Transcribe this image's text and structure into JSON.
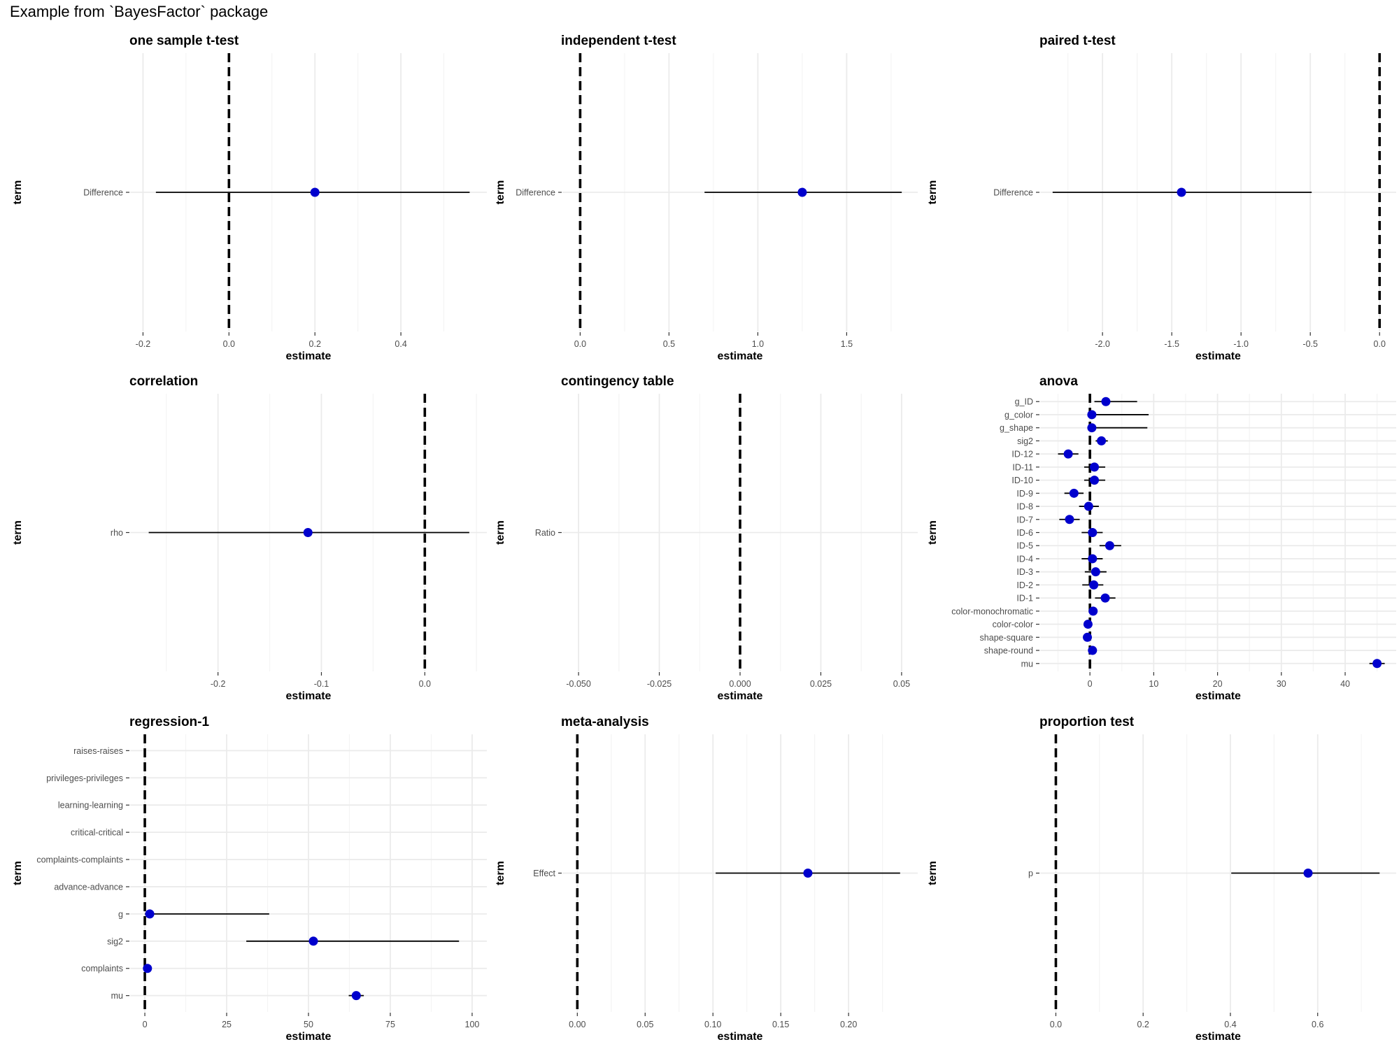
{
  "page": {
    "title": "Example from `BayesFactor` package"
  },
  "colors": {
    "point": "#0000CD",
    "grid_major": "#EBEBEB",
    "grid_minor": "#F4F4F4",
    "line": "#000000"
  },
  "chart_data": [
    {
      "type": "scatter",
      "title": "one sample t-test",
      "xlabel": "estimate",
      "ylabel": "term",
      "xlim": [
        -0.23,
        0.6
      ],
      "xticks": [
        -0.2,
        0.0,
        0.2,
        0.4
      ],
      "xtick_labels": [
        "-0.2",
        "0.0",
        "0.2",
        "0.4"
      ],
      "minor_xticks": [
        -0.1,
        0.1,
        0.3,
        0.5
      ],
      "ref_line": 0,
      "terms": [
        "Difference"
      ],
      "estimates": [
        0.2
      ],
      "conf_low": [
        -0.17
      ],
      "conf_high": [
        0.56
      ]
    },
    {
      "type": "scatter",
      "title": "independent t-test",
      "xlabel": "estimate",
      "ylabel": "term",
      "xlim": [
        -0.1,
        1.9
      ],
      "xticks": [
        0.0,
        0.5,
        1.0,
        1.5
      ],
      "xtick_labels": [
        "0.0",
        "0.5",
        "1.0",
        "1.5"
      ],
      "minor_xticks": [
        0.25,
        0.75,
        1.25,
        1.75
      ],
      "ref_line": 0,
      "terms": [
        "Difference"
      ],
      "estimates": [
        1.25
      ],
      "conf_low": [
        0.7
      ],
      "conf_high": [
        1.81
      ]
    },
    {
      "type": "scatter",
      "title": "paired t-test",
      "xlabel": "estimate",
      "ylabel": "term",
      "xlim": [
        -2.45,
        0.12
      ],
      "xticks": [
        -2.0,
        -1.5,
        -1.0,
        -0.5,
        0.0
      ],
      "xtick_labels": [
        "-2.0",
        "-1.5",
        "-1.0",
        "-0.5",
        "0.0"
      ],
      "minor_xticks": [
        -2.25,
        -1.75,
        -1.25,
        -0.75,
        -0.25
      ],
      "ref_line": 0,
      "terms": [
        "Difference"
      ],
      "estimates": [
        -1.43
      ],
      "conf_low": [
        -2.36
      ],
      "conf_high": [
        -0.49
      ]
    },
    {
      "type": "scatter",
      "title": "correlation",
      "xlabel": "estimate",
      "ylabel": "term",
      "xlim": [
        -0.285,
        0.06
      ],
      "xticks": [
        -0.2,
        -0.1,
        0.0
      ],
      "xtick_labels": [
        "-0.2",
        "-0.1",
        "0.0"
      ],
      "minor_xticks": [
        -0.25,
        -0.15,
        -0.05,
        0.05
      ],
      "ref_line": 0,
      "terms": [
        "rho"
      ],
      "estimates": [
        -0.113
      ],
      "conf_low": [
        -0.267
      ],
      "conf_high": [
        0.043
      ]
    },
    {
      "type": "scatter",
      "title": "contingency table",
      "xlabel": "estimate",
      "ylabel": "term",
      "xlim": [
        -0.055,
        0.055
      ],
      "xticks": [
        -0.05,
        -0.025,
        0.0,
        0.025,
        0.05
      ],
      "xtick_labels": [
        "-0.050",
        "-0.025",
        "0.000",
        "0.025",
        "0.05"
      ],
      "minor_xticks": [
        -0.0375,
        -0.0125,
        0.0125,
        0.0375
      ],
      "ref_line": 0,
      "terms": [
        "Ratio"
      ],
      "estimates": [
        null
      ],
      "conf_low": [
        null
      ],
      "conf_high": [
        null
      ]
    },
    {
      "type": "scatter",
      "title": "anova",
      "xlabel": "estimate",
      "ylabel": "term",
      "xlim": [
        -7.8,
        48.0
      ],
      "xticks": [
        0,
        10,
        20,
        30,
        40
      ],
      "xtick_labels": [
        "0",
        "10",
        "20",
        "30",
        "40"
      ],
      "minor_xticks": [
        -5,
        5,
        15,
        25,
        35,
        45
      ],
      "ref_line": 0,
      "terms": [
        "mu",
        "shape-round",
        "shape-square",
        "color-color",
        "color-monochromatic",
        "ID-1",
        "ID-2",
        "ID-3",
        "ID-4",
        "ID-5",
        "ID-6",
        "ID-7",
        "ID-8",
        "ID-9",
        "ID-10",
        "ID-11",
        "ID-12",
        "sig2",
        "g_shape",
        "g_color",
        "g_ID"
      ],
      "estimates": [
        45.0,
        0.4,
        -0.4,
        -0.3,
        0.5,
        2.4,
        0.6,
        0.9,
        0.4,
        3.1,
        0.4,
        -3.2,
        -0.2,
        -2.5,
        0.7,
        0.7,
        -3.4,
        1.8,
        0.3,
        0.3,
        2.5
      ],
      "conf_low": [
        43.8,
        0.0,
        -0.8,
        -0.7,
        0.1,
        0.8,
        -1.2,
        -0.8,
        -1.3,
        1.5,
        -1.3,
        -4.8,
        -1.7,
        -4.0,
        -0.9,
        -0.9,
        -5.0,
        0.9,
        0.0,
        0.0,
        0.7
      ],
      "conf_high": [
        46.2,
        0.8,
        0.0,
        0.1,
        0.9,
        4.0,
        2.1,
        2.6,
        2.0,
        4.9,
        2.0,
        -1.6,
        1.4,
        -1.0,
        2.4,
        2.4,
        -1.8,
        2.8,
        9.0,
        9.2,
        7.4
      ]
    },
    {
      "type": "scatter",
      "title": "regression-1",
      "xlabel": "estimate",
      "ylabel": "term",
      "xlim": [
        -4.5,
        104.5
      ],
      "xticks": [
        0,
        25,
        50,
        75,
        100
      ],
      "xtick_labels": [
        "0",
        "25",
        "50",
        "75",
        "100"
      ],
      "minor_xticks": [
        12.5,
        37.5,
        62.5,
        87.5
      ],
      "ref_line": 0,
      "terms": [
        "mu",
        "complaints",
        "sig2",
        "g",
        "advance-advance",
        "complaints-complaints",
        "critical-critical",
        "learning-learning",
        "privileges-privileges",
        "raises-raises"
      ],
      "estimates": [
        64.6,
        0.8,
        51.5,
        1.5,
        null,
        null,
        null,
        null,
        null,
        null
      ],
      "conf_low": [
        62.3,
        0.3,
        31.0,
        0.0,
        null,
        null,
        null,
        null,
        null,
        null
      ],
      "conf_high": [
        66.9,
        1.3,
        96.0,
        38.0,
        null,
        null,
        null,
        null,
        null,
        null
      ]
    },
    {
      "type": "scatter",
      "title": "meta-analysis",
      "xlabel": "estimate",
      "ylabel": "term",
      "xlim": [
        -0.011,
        0.251
      ],
      "xticks": [
        0.0,
        0.05,
        0.1,
        0.15,
        0.2
      ],
      "xtick_labels": [
        "0.00",
        "0.05",
        "0.10",
        "0.15",
        "0.20"
      ],
      "minor_xticks": [
        0.025,
        0.075,
        0.125,
        0.175,
        0.225
      ],
      "ref_line": 0,
      "terms": [
        "Effect"
      ],
      "estimates": [
        0.17
      ],
      "conf_low": [
        0.102
      ],
      "conf_high": [
        0.238
      ]
    },
    {
      "type": "scatter",
      "title": "proportion test",
      "xlabel": "estimate",
      "ylabel": "term",
      "xlim": [
        -0.036,
        0.78
      ],
      "xticks": [
        0.0,
        0.2,
        0.4,
        0.6
      ],
      "xtick_labels": [
        "0.0",
        "0.2",
        "0.4",
        "0.6"
      ],
      "minor_xticks": [
        0.1,
        0.3,
        0.5,
        0.7
      ],
      "ref_line": 0,
      "terms": [
        "p"
      ],
      "estimates": [
        0.578
      ],
      "conf_low": [
        0.402
      ],
      "conf_high": [
        0.742
      ]
    }
  ]
}
